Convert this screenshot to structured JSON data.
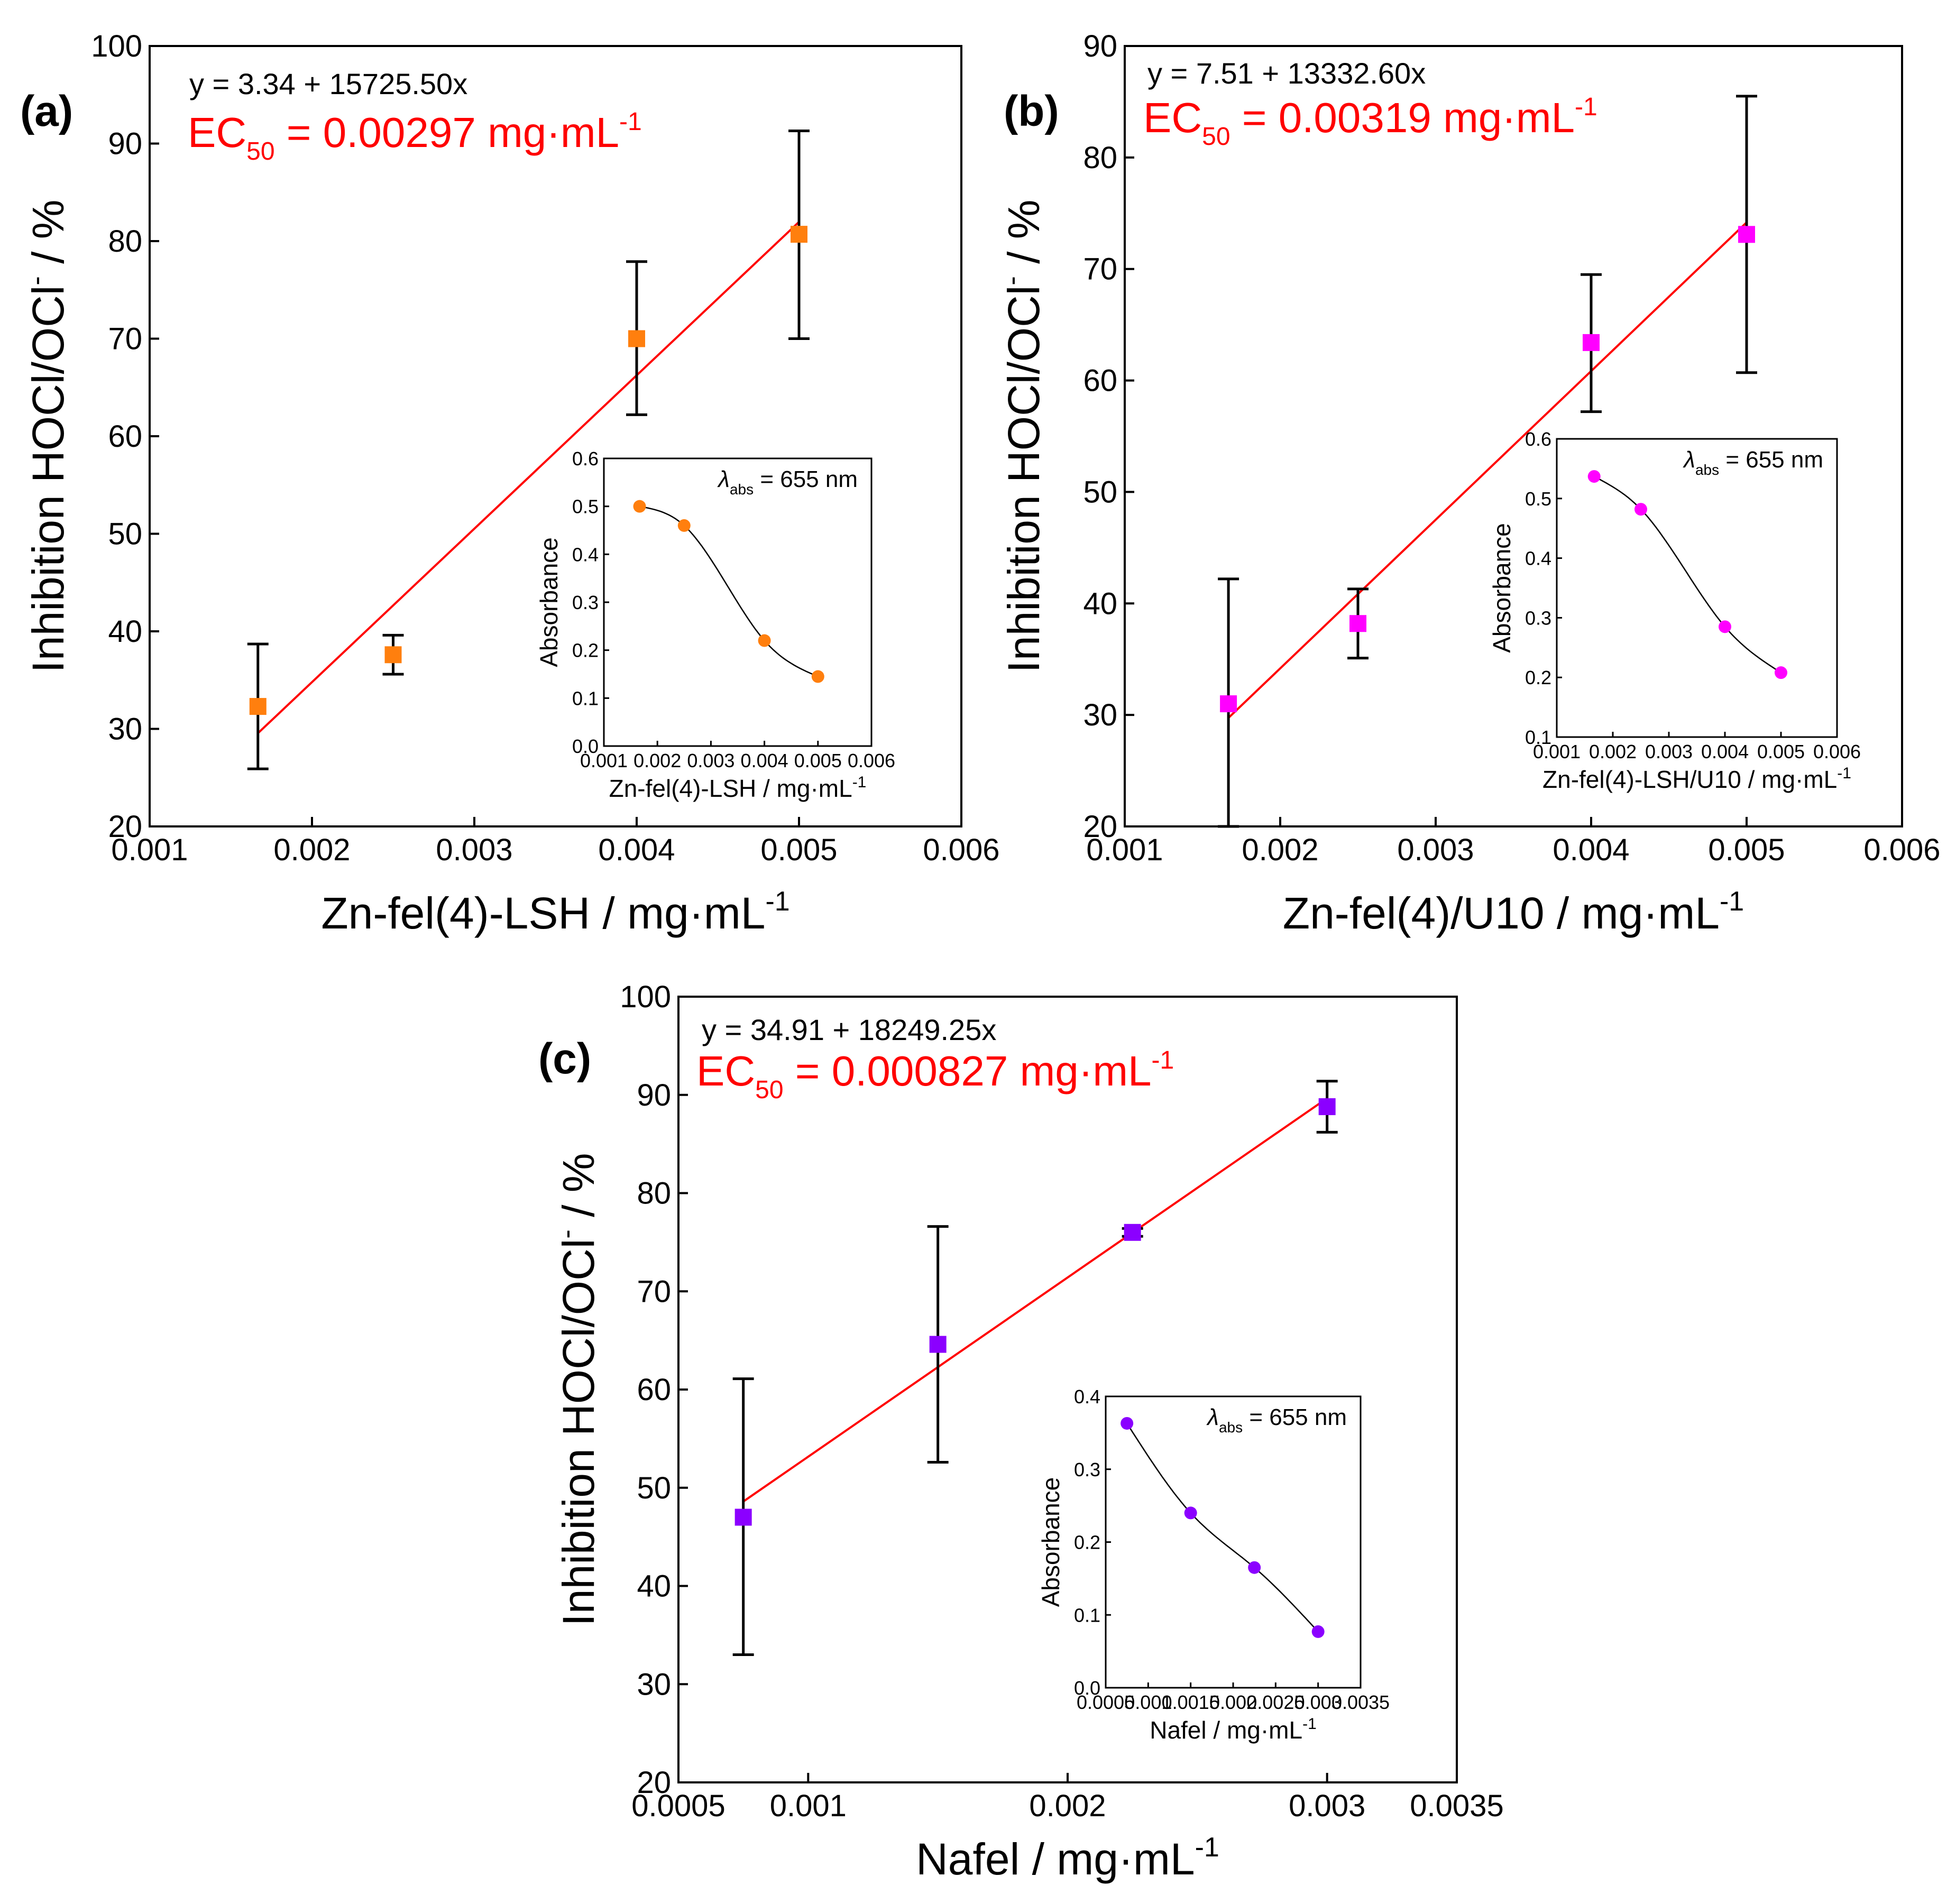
{
  "chart_data": [
    {
      "type": "scatter",
      "panel_label": "(a)",
      "xlabel": "Zn-fel(4)-LSH / mg·mL",
      "xlabel_sup": "-1",
      "ylabel": "Inhibition HOCl/OCl",
      "ylabel_sup": "-",
      "ylabel_tail": " / %",
      "xlim": [
        0.001,
        0.006
      ],
      "ylim": [
        20,
        100
      ],
      "xticks": [
        0.001,
        0.002,
        0.003,
        0.004,
        0.005,
        0.006
      ],
      "xtick_labels": [
        "0.001",
        "0.002",
        "0.003",
        "0.004",
        "0.005",
        "0.006"
      ],
      "yticks": [
        20,
        30,
        40,
        50,
        60,
        70,
        80,
        90,
        100
      ],
      "ytick_labels": [
        "20",
        "30",
        "40",
        "50",
        "60",
        "70",
        "80",
        "90",
        "100"
      ],
      "marker_color": "#ff7f0e",
      "fit_color": "#ff0000",
      "equation": "y = 3.34 + 15725.50x",
      "ec50_prefix": "EC",
      "ec50_sub": "50",
      "ec50_value": " = 0.00297 mg·mL",
      "ec50_sup": "-1",
      "fit": {
        "intercept": 3.34,
        "slope": 15725.5,
        "x_range": [
          0.001667,
          0.005
        ]
      },
      "points": [
        {
          "x": 0.001667,
          "y": 32.3,
          "err_low": 25.9,
          "err_high": 38.7
        },
        {
          "x": 0.0025,
          "y": 37.6,
          "err_low": 35.6,
          "err_high": 39.6
        },
        {
          "x": 0.004,
          "y": 70.0,
          "err_low": 62.2,
          "err_high": 77.9
        },
        {
          "x": 0.005,
          "y": 80.7,
          "err_low": 70.0,
          "err_high": 91.3
        }
      ],
      "inset": {
        "xlabel": "Zn-fel(4)-LSH / mg·mL",
        "xlabel_sup": "-1",
        "ylabel": "Absorbance",
        "lambda_prefix": "λ",
        "lambda_sub": "abs",
        "lambda_value": " = 655 nm",
        "xlim": [
          0.001,
          0.006
        ],
        "ylim": [
          0.0,
          0.6
        ],
        "xticks": [
          0.001,
          0.002,
          0.003,
          0.004,
          0.005,
          0.006
        ],
        "xtick_labels": [
          "0.001",
          "0.002",
          "0.003",
          "0.004",
          "0.005",
          "0.006"
        ],
        "yticks": [
          0.0,
          0.1,
          0.2,
          0.3,
          0.4,
          0.5,
          0.6
        ],
        "ytick_labels": [
          "0.0",
          "0.1",
          "0.2",
          "0.3",
          "0.4",
          "0.5",
          "0.6"
        ],
        "points": [
          {
            "x": 0.001667,
            "y": 0.5
          },
          {
            "x": 0.0025,
            "y": 0.46
          },
          {
            "x": 0.004,
            "y": 0.22
          },
          {
            "x": 0.005,
            "y": 0.145
          }
        ]
      }
    },
    {
      "type": "scatter",
      "panel_label": "(b)",
      "xlabel": "Zn-fel(4)/U10 / mg·mL",
      "xlabel_sup": "-1",
      "ylabel": "Inhibition HOCl/OCl",
      "ylabel_sup": "-",
      "ylabel_tail": " / %",
      "xlim": [
        0.001,
        0.006
      ],
      "ylim": [
        20,
        90
      ],
      "xticks": [
        0.001,
        0.002,
        0.003,
        0.004,
        0.005,
        0.006
      ],
      "xtick_labels": [
        "0.001",
        "0.002",
        "0.003",
        "0.004",
        "0.005",
        "0.006"
      ],
      "yticks": [
        20,
        30,
        40,
        50,
        60,
        70,
        80,
        90
      ],
      "ytick_labels": [
        "20",
        "30",
        "40",
        "50",
        "60",
        "70",
        "80",
        "90"
      ],
      "marker_color": "#ff00ff",
      "fit_color": "#ff0000",
      "equation": "y = 7.51 + 13332.60x",
      "ec50_prefix": "EC",
      "ec50_sub": "50",
      "ec50_value": " = 0.00319 mg·mL",
      "ec50_sup": "-1",
      "fit": {
        "intercept": 7.51,
        "slope": 13332.6,
        "x_range": [
          0.001667,
          0.005
        ]
      },
      "points": [
        {
          "x": 0.001667,
          "y": 31.0,
          "err_low": 20.0,
          "err_high": 42.2
        },
        {
          "x": 0.0025,
          "y": 38.2,
          "err_low": 35.1,
          "err_high": 41.3
        },
        {
          "x": 0.004,
          "y": 63.4,
          "err_low": 57.2,
          "err_high": 69.5
        },
        {
          "x": 0.005,
          "y": 73.1,
          "err_low": 60.7,
          "err_high": 85.5
        }
      ],
      "inset": {
        "xlabel": "Zn-fel(4)-LSH/U10 / mg·mL",
        "xlabel_sup": "-1",
        "ylabel": "Absorbance",
        "lambda_prefix": "λ",
        "lambda_sub": "abs",
        "lambda_value": " = 655 nm",
        "xlim": [
          0.001,
          0.006
        ],
        "ylim": [
          0.1,
          0.6
        ],
        "xticks": [
          0.001,
          0.002,
          0.003,
          0.004,
          0.005,
          0.006
        ],
        "xtick_labels": [
          "0.001",
          "0.002",
          "0.003",
          "0.004",
          "0.005",
          "0.006"
        ],
        "yticks": [
          0.1,
          0.2,
          0.3,
          0.4,
          0.5,
          0.6
        ],
        "ytick_labels": [
          "0.1",
          "0.2",
          "0.3",
          "0.4",
          "0.5",
          "0.6"
        ],
        "points": [
          {
            "x": 0.001667,
            "y": 0.537
          },
          {
            "x": 0.0025,
            "y": 0.482
          },
          {
            "x": 0.004,
            "y": 0.285
          },
          {
            "x": 0.005,
            "y": 0.208
          }
        ]
      }
    },
    {
      "type": "scatter",
      "panel_label": "(c)",
      "xlabel": "Nafel / mg·mL",
      "xlabel_sup": "-1",
      "ylabel": "Inhibition HOCl/OCl",
      "ylabel_sup": "-",
      "ylabel_tail": " / %",
      "xlim": [
        0.0005,
        0.0035
      ],
      "ylim": [
        20,
        100
      ],
      "xticks": [
        0.0005,
        0.001,
        0.002,
        0.003,
        0.0035
      ],
      "xtick_labels": [
        "0.0005",
        "0.001",
        "0.002",
        "0.003",
        "0.0035"
      ],
      "yticks": [
        20,
        30,
        40,
        50,
        60,
        70,
        80,
        90,
        100
      ],
      "ytick_labels": [
        "20",
        "30",
        "40",
        "50",
        "60",
        "70",
        "80",
        "90",
        "100"
      ],
      "marker_color": "#8b00ff",
      "fit_color": "#ff0000",
      "equation": "y = 34.91 + 18249.25x",
      "ec50_prefix": "EC",
      "ec50_sub": "50",
      "ec50_value": " = 0.000827 mg·mL",
      "ec50_sup": "-1",
      "fit": {
        "intercept": 34.91,
        "slope": 18249.25,
        "x_range": [
          0.00075,
          0.003
        ]
      },
      "points": [
        {
          "x": 0.00075,
          "y": 47.0,
          "err_low": 33.0,
          "err_high": 61.1
        },
        {
          "x": 0.0015,
          "y": 64.6,
          "err_low": 52.6,
          "err_high": 76.6
        },
        {
          "x": 0.00225,
          "y": 76.0,
          "err_low": 75.6,
          "err_high": 76.4
        },
        {
          "x": 0.003,
          "y": 88.8,
          "err_low": 86.2,
          "err_high": 91.4
        }
      ],
      "inset": {
        "xlabel": "Nafel / mg·mL",
        "xlabel_sup": "-1",
        "ylabel": "Absorbance",
        "lambda_prefix": "λ",
        "lambda_sub": "abs",
        "lambda_value": " = 655 nm",
        "xlim": [
          0.0005,
          0.0035
        ],
        "ylim": [
          0.0,
          0.4
        ],
        "xticks": [
          0.0005,
          0.001,
          0.0015,
          0.002,
          0.0025,
          0.003,
          0.0035
        ],
        "xtick_labels": [
          "0.0005",
          "0.001",
          "0.0015",
          "0.002",
          "0.0025",
          "0.003",
          "0.0035"
        ],
        "yticks": [
          0.0,
          0.1,
          0.2,
          0.3,
          0.4
        ],
        "ytick_labels": [
          "0.0",
          "0.1",
          "0.2",
          "0.3",
          "0.4"
        ],
        "points": [
          {
            "x": 0.00075,
            "y": 0.363
          },
          {
            "x": 0.0015,
            "y": 0.24
          },
          {
            "x": 0.00225,
            "y": 0.165
          },
          {
            "x": 0.003,
            "y": 0.077
          }
        ]
      }
    }
  ]
}
